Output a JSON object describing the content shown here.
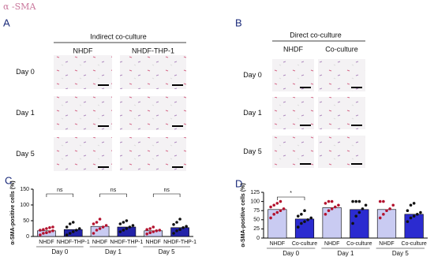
{
  "header": {
    "title": "α -SMA"
  },
  "panel_a": {
    "letter": "A",
    "title": "Indirect co-culture",
    "columns": [
      "NHDF",
      "NHDF-THP-1"
    ],
    "rows": [
      "Day 0",
      "Day 1",
      "Day 5"
    ]
  },
  "panel_b": {
    "letter": "B",
    "title": "Direct co-culture",
    "columns": [
      "NHDF",
      "Co-culture"
    ],
    "rows": [
      "Day 0",
      "Day 1",
      "Day 5"
    ]
  },
  "chart_data": [
    {
      "type": "bar",
      "letter": "C",
      "y_label": "α-SMA-positive cells (%)",
      "categories": [
        "Day 0",
        "Day 1",
        "Day 5"
      ],
      "ylim": [
        0,
        150
      ],
      "yticks": [
        0,
        50,
        100,
        150
      ],
      "annotations": [
        "ns",
        "ns",
        "ns"
      ],
      "series": [
        {
          "name": "NHDF",
          "color": "#c9cbf2",
          "values": [
            18,
            32,
            18
          ],
          "points": [
            [
              5,
              10,
              12,
              15,
              18,
              20,
              22,
              25,
              28,
              30
            ],
            [
              10,
              20,
              25,
              30,
              35,
              40,
              45,
              55
            ],
            [
              8,
              12,
              15,
              18,
              20,
              22,
              25,
              30
            ]
          ]
        },
        {
          "name": "NHDF-THP-1",
          "color": "#2222a8",
          "values": [
            22,
            30,
            28
          ],
          "points": [
            [
              5,
              10,
              15,
              20,
              25,
              30,
              40,
              45
            ],
            [
              15,
              20,
              25,
              30,
              35,
              40,
              45,
              50
            ],
            [
              10,
              18,
              22,
              28,
              32,
              38,
              45,
              55
            ]
          ]
        }
      ]
    },
    {
      "type": "bar",
      "letter": "D",
      "y_label": "α-SMA-positive cells (%)",
      "categories": [
        "Day 0",
        "Day 1",
        "Day 5"
      ],
      "ylim": [
        0,
        125
      ],
      "yticks": [
        0,
        25,
        50,
        75,
        100,
        125
      ],
      "annotations": [
        "*"
      ],
      "series": [
        {
          "name": "NHDF",
          "color": "#c9cbf2",
          "values": [
            78,
            83,
            78
          ],
          "points": [
            [
              55,
              65,
              70,
              75,
              80,
              85,
              90,
              95,
              100
            ],
            [
              65,
              75,
              80,
              85,
              90,
              95,
              100,
              100
            ],
            [
              55,
              65,
              75,
              80,
              90,
              100,
              100
            ]
          ]
        },
        {
          "name": "Co-culture",
          "color": "#2b2bd0",
          "values": [
            52,
            78,
            65
          ],
          "points": [
            [
              30,
              40,
              45,
              50,
              55,
              60,
              65,
              75
            ],
            [
              40,
              60,
              70,
              80,
              90,
              100,
              100,
              100
            ],
            [
              45,
              55,
              60,
              65,
              70,
              75,
              90,
              95
            ]
          ]
        }
      ]
    }
  ]
}
